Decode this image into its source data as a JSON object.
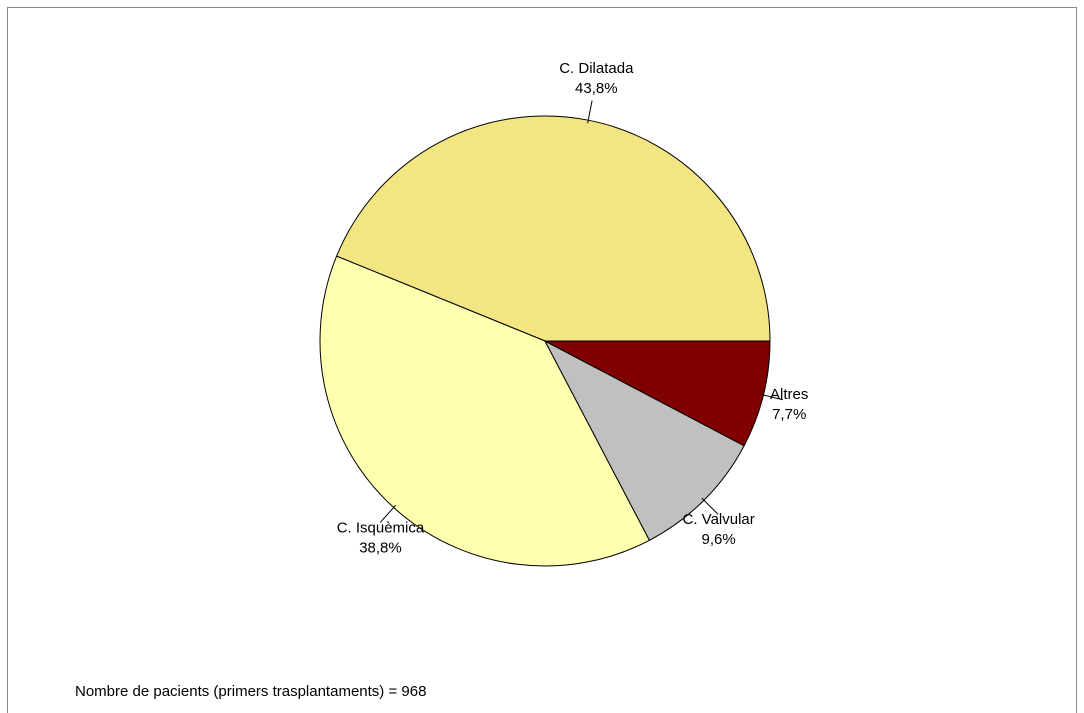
{
  "chart_data": {
    "type": "pie",
    "categories": [
      "C. Dilatada",
      "C. Isquèmica",
      "C. Valvular",
      "Altres"
    ],
    "values": [
      43.8,
      38.8,
      9.6,
      7.7
    ],
    "value_labels": [
      "43,8%",
      "38,8%",
      "9,6%",
      "7,7%"
    ],
    "colors": [
      "#f2e582",
      "#ffffb0",
      "#c0c0c0",
      "#800000"
    ],
    "start_angle": 0,
    "direction": "counterclockwise",
    "footnote": "Nombre de pacients (primers trasplantaments) = 968"
  }
}
